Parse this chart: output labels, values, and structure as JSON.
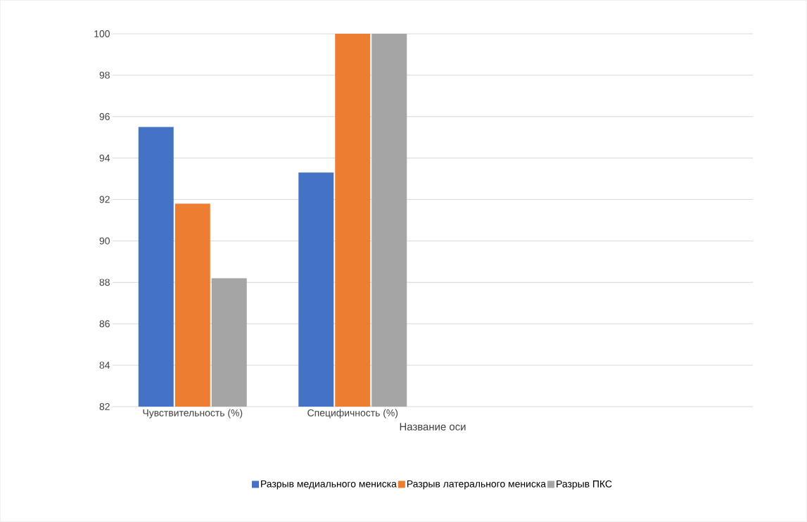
{
  "chart_data": {
    "type": "bar",
    "xlabel": "Название оси",
    "categories": [
      "Чувствительность (%)",
      "Специфичность (%)",
      null,
      null
    ],
    "series": [
      {
        "name": "Разрыв медиального мениска",
        "color": "#4472c4",
        "values": [
          95.5,
          93.3,
          null,
          null
        ]
      },
      {
        "name": "Разрыв латерального мениска",
        "color": "#ed7d31",
        "values": [
          91.8,
          100,
          null,
          null
        ]
      },
      {
        "name": "Разрыв ПКС",
        "color": "#a5a5a5",
        "values": [
          88.2,
          100,
          null,
          null
        ]
      }
    ],
    "ylim": [
      82,
      100
    ],
    "yticks": [
      82,
      84,
      86,
      88,
      90,
      92,
      94,
      96,
      98,
      100
    ],
    "grid": "y",
    "legend": "bottom"
  }
}
